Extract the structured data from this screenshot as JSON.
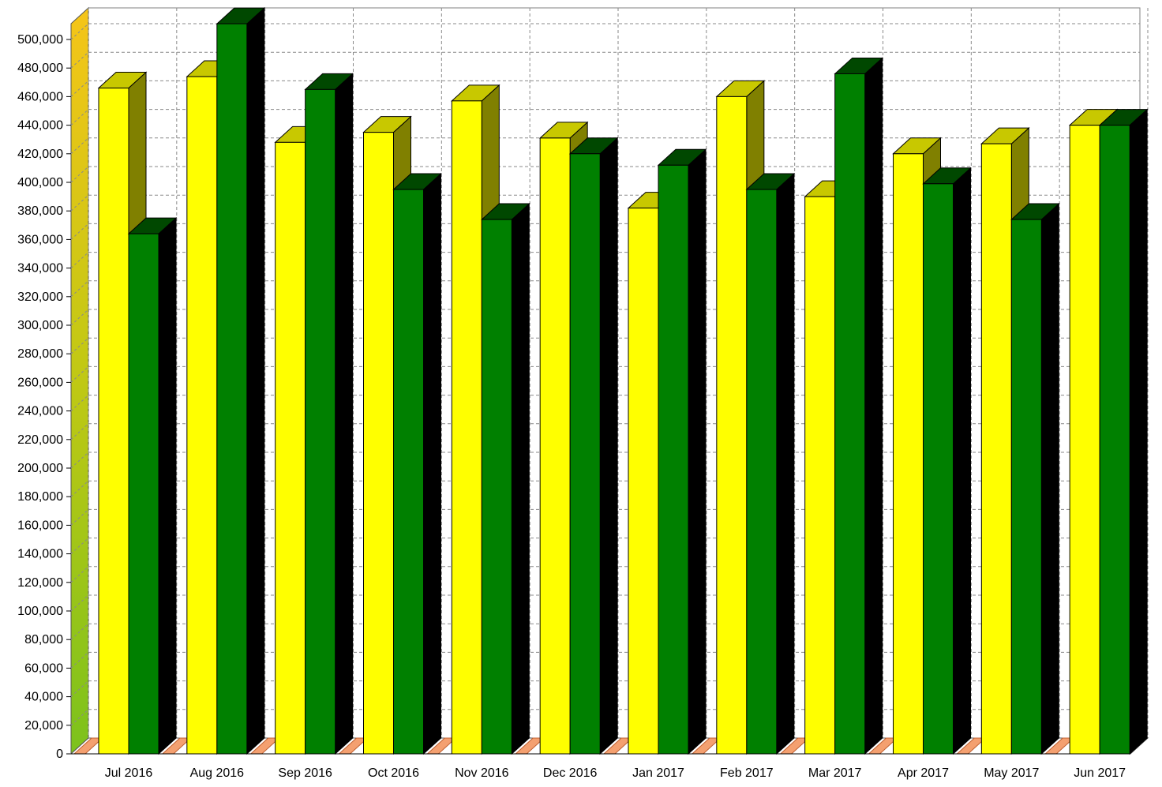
{
  "chart_data": {
    "type": "bar",
    "categories": [
      "Jul 2016",
      "Aug 2016",
      "Sep 2016",
      "Oct 2016",
      "Nov 2016",
      "Dec 2016",
      "Jan 2017",
      "Feb 2017",
      "Mar 2017",
      "Apr 2017",
      "May 2017",
      "Jun 2017"
    ],
    "series": [
      {
        "color": "#ffff00",
        "values": [
          466000,
          474000,
          428000,
          435000,
          457000,
          431000,
          382000,
          460000,
          390000,
          420000,
          427000,
          440000
        ]
      },
      {
        "color": "#008000",
        "values": [
          364000,
          511000,
          465000,
          395000,
          374000,
          420000,
          412000,
          395000,
          476000,
          399000,
          374000,
          440000
        ]
      }
    ],
    "y_ticks": [
      "0",
      "20,000",
      "40,000",
      "60,000",
      "80,000",
      "100,000",
      "120,000",
      "140,000",
      "160,000",
      "180,000",
      "200,000",
      "220,000",
      "240,000",
      "260,000",
      "280,000",
      "300,000",
      "320,000",
      "340,000",
      "360,000",
      "380,000",
      "400,000",
      "420,000",
      "440,000",
      "460,000",
      "480,000",
      "500,000"
    ],
    "ylim": [
      0,
      510000
    ],
    "grid": true,
    "style": "3d"
  }
}
